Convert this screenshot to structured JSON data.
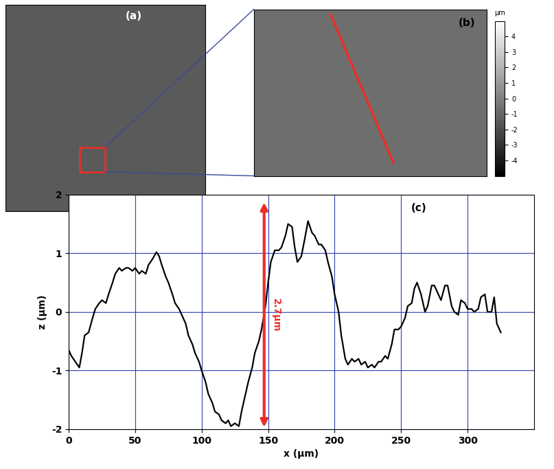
{
  "chart_data": {
    "type": "line",
    "panel_label": "(c)",
    "x_label": "x (µm)",
    "y_label": "z (µm)",
    "x": [
      0,
      2,
      5,
      8,
      10,
      12,
      15,
      18,
      20,
      23,
      25,
      28,
      30,
      33,
      35,
      38,
      40,
      43,
      45,
      48,
      50,
      53,
      55,
      58,
      60,
      63,
      66,
      68,
      70,
      73,
      75,
      78,
      80,
      83,
      85,
      88,
      90,
      93,
      95,
      98,
      100,
      103,
      105,
      108,
      110,
      113,
      115,
      118,
      120,
      122,
      125,
      128,
      130,
      133,
      135,
      138,
      140,
      143,
      145,
      148,
      150,
      152,
      155,
      158,
      160,
      163,
      165,
      168,
      170,
      172,
      175,
      178,
      180,
      183,
      185,
      188,
      190,
      193,
      195,
      198,
      200,
      203,
      205,
      208,
      210,
      213,
      215,
      218,
      220,
      223,
      225,
      228,
      230,
      233,
      235,
      238,
      240,
      243,
      245,
      248,
      250,
      253,
      255,
      258,
      260,
      262,
      265,
      268,
      270,
      273,
      275,
      278,
      280,
      283,
      285,
      288,
      290,
      293,
      295,
      298,
      300,
      303,
      305,
      308,
      310,
      313,
      315,
      318,
      320,
      322,
      325
    ],
    "values": [
      -0.65,
      -0.75,
      -0.85,
      -0.95,
      -0.7,
      -0.4,
      -0.35,
      -0.1,
      0.05,
      0.15,
      0.2,
      0.15,
      0.3,
      0.5,
      0.65,
      0.75,
      0.7,
      0.75,
      0.75,
      0.7,
      0.75,
      0.65,
      0.7,
      0.65,
      0.8,
      0.9,
      1.02,
      0.95,
      0.8,
      0.6,
      0.5,
      0.3,
      0.15,
      0.05,
      -0.05,
      -0.2,
      -0.4,
      -0.55,
      -0.7,
      -0.85,
      -1.0,
      -1.2,
      -1.4,
      -1.55,
      -1.7,
      -1.75,
      -1.85,
      -1.9,
      -1.85,
      -1.95,
      -1.9,
      -1.95,
      -1.7,
      -1.4,
      -1.2,
      -0.95,
      -0.7,
      -0.5,
      -0.3,
      0.1,
      0.5,
      0.85,
      1.05,
      1.05,
      1.1,
      1.3,
      1.5,
      1.45,
      1.1,
      0.85,
      0.95,
      1.3,
      1.55,
      1.35,
      1.3,
      1.15,
      1.15,
      1.05,
      0.85,
      0.6,
      0.3,
      0.0,
      -0.4,
      -0.8,
      -0.9,
      -0.8,
      -0.85,
      -0.8,
      -0.9,
      -0.85,
      -0.95,
      -0.9,
      -0.95,
      -0.85,
      -0.85,
      -0.75,
      -0.8,
      -0.55,
      -0.3,
      -0.3,
      -0.25,
      -0.1,
      0.1,
      0.15,
      0.4,
      0.5,
      0.3,
      0.0,
      0.1,
      0.45,
      0.45,
      0.3,
      0.2,
      0.45,
      0.45,
      0.1,
      0.0,
      -0.05,
      0.2,
      0.15,
      0.05,
      0.05,
      0.0,
      0.05,
      0.25,
      0.3,
      0.0,
      0.0,
      0.25,
      -0.2,
      -0.35
    ],
    "color": "#000000",
    "xlim": [
      0,
      350
    ],
    "xticks": [
      0,
      50,
      100,
      150,
      200,
      250,
      300
    ],
    "ylim": [
      -2,
      2
    ],
    "yticks": [
      -2,
      -1,
      0,
      1,
      2
    ],
    "grid": true,
    "annotation": {
      "text": "2.7µm",
      "x": 147,
      "y_from": -2,
      "y_to": 1.9,
      "color": "#e8302a"
    }
  },
  "panels": {
    "a": {
      "label": "(a)"
    },
    "b": {
      "label": "(b)",
      "colorbar": {
        "label": "µm",
        "range": [
          -5,
          5
        ],
        "ticks": [
          -4,
          -3,
          -2,
          -1,
          0,
          1,
          2,
          3,
          4
        ]
      }
    }
  }
}
